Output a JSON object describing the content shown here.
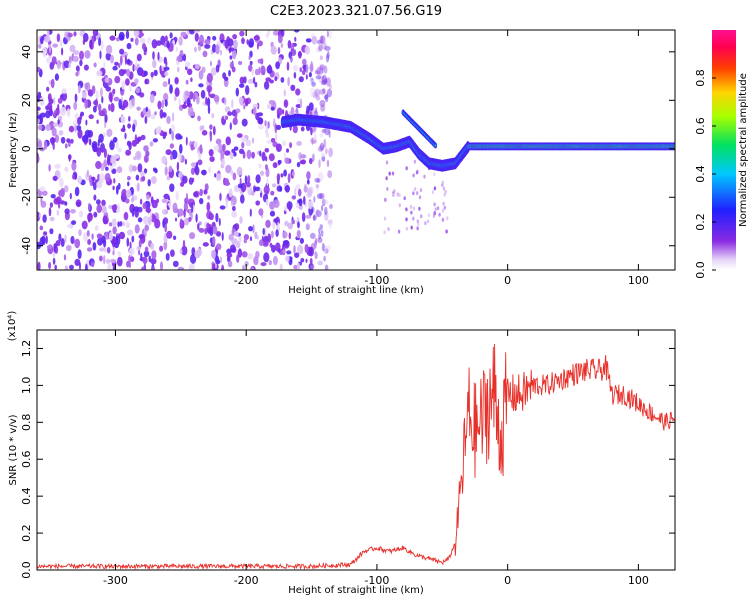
{
  "title": "C2E3.2023.321.07.56.G19",
  "chart_data": [
    {
      "type": "heatmap",
      "xlabel": "Height of straight line (km)",
      "ylabel": "Frequency (Hz)",
      "xlim": [
        -360,
        128
      ],
      "ylim": [
        -50,
        49
      ],
      "xticks": [
        -300,
        -200,
        -100,
        0,
        100
      ],
      "xtick_labels": [
        "-300",
        "-200",
        "-100",
        "0",
        "100"
      ],
      "yticks": [
        -40,
        -20,
        0,
        20,
        40
      ],
      "ytick_labels": [
        "-40",
        "-20",
        "0",
        "20",
        "40"
      ],
      "colorbar": {
        "label": "Normalized spectral amplitude",
        "range": [
          0.0,
          1.0
        ],
        "ticks": [
          0.0,
          0.2,
          0.4,
          0.6,
          0.8
        ],
        "tick_labels": [
          "0.0",
          "0.2",
          "0.4",
          "0.6",
          "0.8"
        ],
        "colormap": "rainbow (white-purple-blue-cyan-green-yellow-red-magenta)"
      },
      "features": {
        "noise_region_x": [
          -360,
          -135
        ],
        "signal_track": {
          "x": [
            -172,
            -160,
            -140,
            -120,
            -105,
            -95,
            -85,
            -75,
            -68,
            -60,
            -50,
            -40,
            -30,
            -20,
            -10,
            0,
            20,
            50,
            80,
            100,
            128
          ],
          "frequency": [
            11,
            12,
            11,
            9,
            4,
            0,
            1,
            3,
            -2,
            -6,
            -7,
            -6,
            1,
            1,
            1,
            1,
            1,
            1,
            1,
            1,
            1
          ]
        }
      },
      "grid": false
    },
    {
      "type": "line",
      "xlabel": "Height of straight line (km)",
      "ylabel": "SNR (10 * v/v)",
      "y_multiplier_label": "(x10⁴)",
      "xlim": [
        -360,
        128
      ],
      "ylim": [
        0,
        1.3
      ],
      "xticks": [
        -300,
        -200,
        -100,
        0,
        100
      ],
      "xtick_labels": [
        "-300",
        "-200",
        "-100",
        "0",
        "100"
      ],
      "yticks": [
        0.0,
        0.2,
        0.4,
        0.6,
        0.8,
        1.0,
        1.2
      ],
      "ytick_labels": [
        "0.0",
        "0.2",
        "0.4",
        "0.6",
        "0.8",
        "1.0",
        "1.2"
      ],
      "color": "#e8302a",
      "series": [
        {
          "x": [
            -360,
            -300,
            -200,
            -150,
            -120,
            -110,
            -100,
            -90,
            -80,
            -70,
            -60,
            -50,
            -45,
            -40,
            -35,
            -30,
            -25,
            -20,
            -15,
            -10,
            -5,
            0,
            10,
            20,
            30,
            40,
            50,
            60,
            70,
            75,
            80,
            90,
            100,
            110,
            120,
            128
          ],
          "values": [
            0.02,
            0.02,
            0.02,
            0.02,
            0.03,
            0.1,
            0.12,
            0.1,
            0.12,
            0.08,
            0.06,
            0.04,
            0.06,
            0.15,
            0.5,
            0.85,
            0.75,
            0.8,
            0.9,
            0.95,
            0.7,
            0.95,
            0.95,
            1.0,
            1.0,
            1.03,
            1.06,
            1.08,
            1.08,
            1.1,
            0.95,
            0.95,
            0.9,
            0.85,
            0.8,
            0.82
          ]
        }
      ],
      "grid": false
    }
  ]
}
